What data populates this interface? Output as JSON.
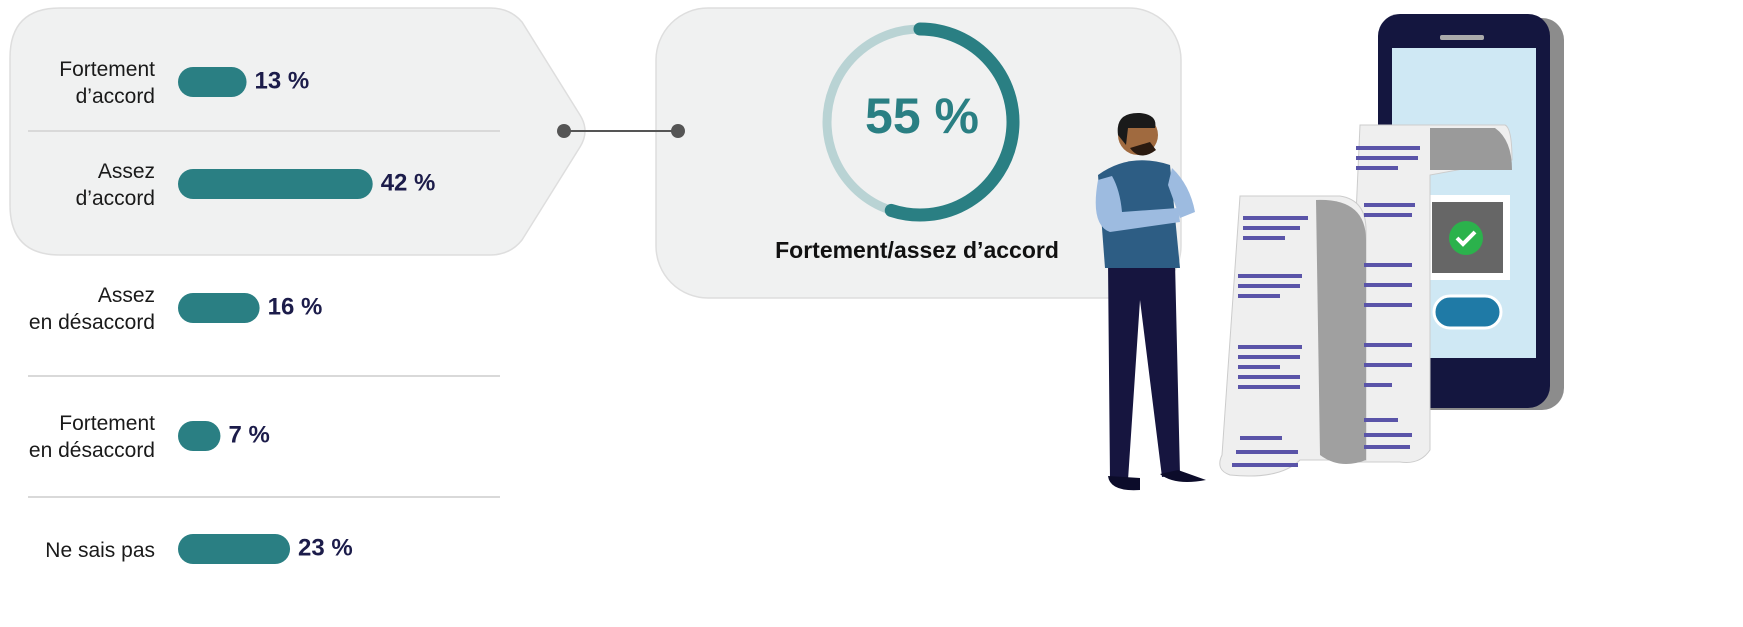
{
  "chart_data": [
    {
      "type": "bar",
      "categories": [
        "Fortement\nd’accord",
        "Assez\nd’accord",
        "Assez\nen désaccord",
        "Fortement\nen désaccord",
        "Ne sais pas"
      ],
      "values": [
        13,
        42,
        16,
        7,
        23
      ],
      "value_labels": [
        "13 %",
        "42 %",
        "16 %",
        "7 %",
        "23 %"
      ],
      "color": "#2a7f83"
    },
    {
      "type": "donut",
      "value": 55,
      "value_label": "55 %",
      "label": "Fortement/assez d’accord",
      "color": "#2a7f83",
      "track_color": "#b9d3d4"
    }
  ]
}
